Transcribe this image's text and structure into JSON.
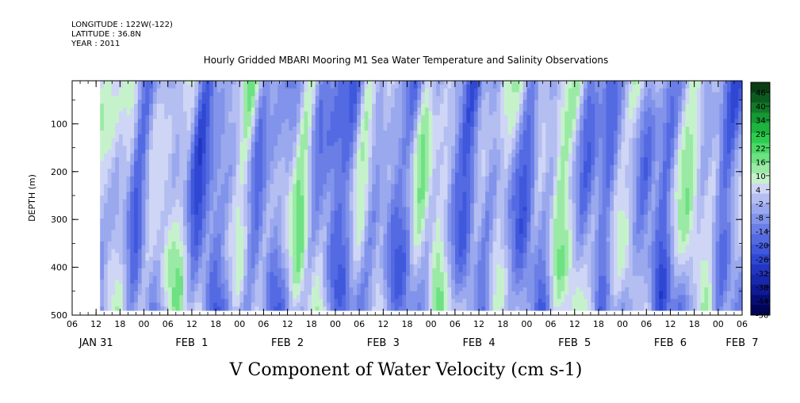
{
  "header": {
    "longitude": "LONGITUDE : 122W(-122)",
    "latitude": "LATITUDE : 36.8N",
    "year": "YEAR : 2011"
  },
  "chart_data": {
    "type": "heatmap",
    "title": "Hourly Gridded MBARI Mooring M1 Sea Water Temperature and Salinity Observations",
    "xlabel": "V Component of Water Velocity (cm s-1)",
    "ylabel": "DEPTH (m)",
    "y_ticks": [
      "100",
      "200",
      "300",
      "400",
      "500"
    ],
    "y_tick_values": [
      100,
      200,
      300,
      400,
      500
    ],
    "ylim": [
      500,
      10
    ],
    "y_inverted": true,
    "x_range": [
      "JAN 31 06h",
      "FEB 7 06h"
    ],
    "x_hour_ticks": [
      "06",
      "12",
      "18",
      "00",
      "06",
      "12",
      "18",
      "00",
      "06",
      "12",
      "18",
      "00",
      "06",
      "12",
      "18",
      "00",
      "06",
      "12",
      "18",
      "00",
      "06",
      "12",
      "18",
      "00",
      "06",
      "12",
      "18",
      "00",
      "06"
    ],
    "x_date_labels": [
      {
        "label": "JAN 31",
        "hours_from_start": 6
      },
      {
        "label": "FEB  1",
        "hours_from_start": 30
      },
      {
        "label": "FEB  2",
        "hours_from_start": 54
      },
      {
        "label": "FEB  3",
        "hours_from_start": 78
      },
      {
        "label": "FEB  4",
        "hours_from_start": 102
      },
      {
        "label": "FEB  5",
        "hours_from_start": 126
      },
      {
        "label": "FEB  6",
        "hours_from_start": 150
      },
      {
        "label": "FEB  7",
        "hours_from_start": 168
      }
    ],
    "data_time_range_hours_from_start": [
      7,
      168
    ],
    "data_depth_range": [
      10,
      490
    ],
    "colorbar": {
      "labels": [
        "46",
        "40",
        "34",
        "28",
        "22",
        "16",
        "10",
        "4",
        "-2",
        "-8",
        "-14",
        "-20",
        "-26",
        "-32",
        "-38",
        "-44",
        "-50"
      ],
      "level_min": -50,
      "level_max": 49,
      "level_step": 3,
      "colors_top_to_bottom": [
        "#0a3d14",
        "#0d5a1f",
        "#117a29",
        "#169834",
        "#1cb33e",
        "#2ccd4f",
        "#4ad866",
        "#6ee183",
        "#9aeaa6",
        "#c6f2cb",
        "#cfd6f5",
        "#b4bef1",
        "#9aa8ee",
        "#8193ea",
        "#6a7ee6",
        "#546ae2",
        "#3f58dc",
        "#2f47d2",
        "#2236c2",
        "#1828ad",
        "#0f1a94",
        "#070d78",
        "#020458"
      ]
    },
    "grid": false
  }
}
